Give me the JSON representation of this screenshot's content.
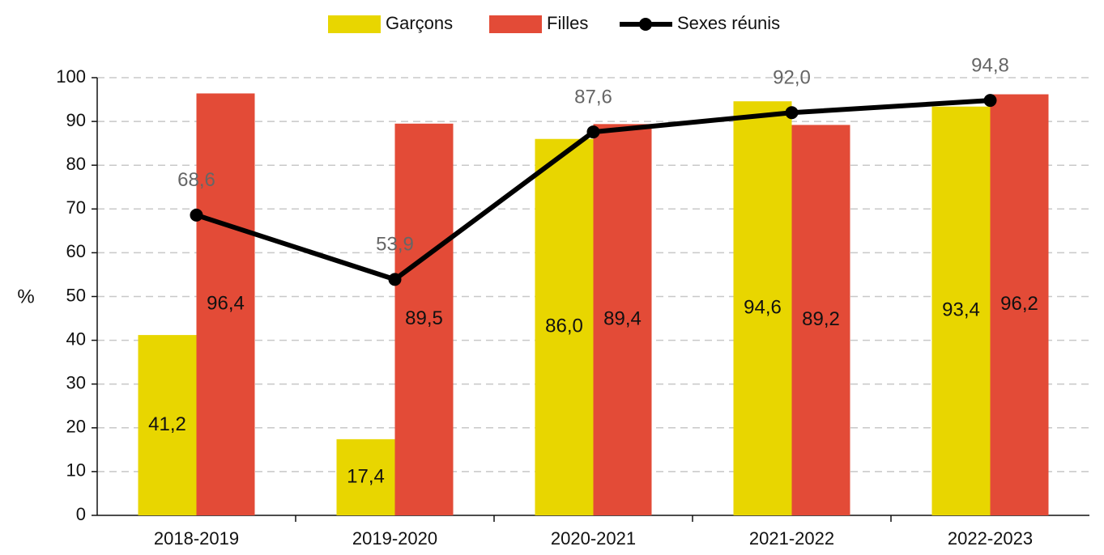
{
  "chart_data": {
    "type": "bar_line",
    "categories": [
      "2018-2019",
      "2019-2020",
      "2020-2021",
      "2021-2022",
      "2022-2023"
    ],
    "y_label": "%",
    "ylim": [
      0,
      100
    ],
    "yticks": [
      0,
      10,
      20,
      30,
      40,
      50,
      60,
      70,
      80,
      90,
      100
    ],
    "grid": true,
    "legend": "top",
    "series": [
      {
        "name": "Garçons",
        "type": "bar",
        "color": "#e8d600",
        "values": [
          41.2,
          17.4,
          86.0,
          94.6,
          93.4
        ],
        "value_labels": [
          "41,2",
          "17,4",
          "86,0",
          "94,6",
          "93,4"
        ]
      },
      {
        "name": "Filles",
        "type": "bar",
        "color": "#e34b37",
        "values": [
          96.4,
          89.5,
          89.4,
          89.2,
          96.2
        ],
        "value_labels": [
          "96,4",
          "89,5",
          "89,4",
          "89,2",
          "96,2"
        ]
      },
      {
        "name": "Sexes réunis",
        "type": "line",
        "color": "#000000",
        "values": [
          68.6,
          53.9,
          87.6,
          92.0,
          94.8
        ],
        "value_labels": [
          "68,6",
          "53,9",
          "87,6",
          "92,0",
          "94,8"
        ]
      }
    ]
  }
}
